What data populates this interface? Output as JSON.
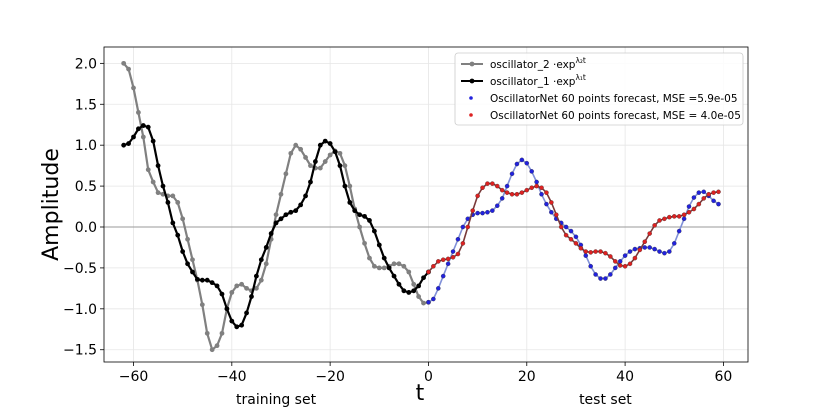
{
  "chart_data": {
    "type": "line",
    "title": "",
    "xlabel": "t",
    "ylabel": "Amplitude",
    "xlim": [
      -66,
      65
    ],
    "ylim": [
      -1.65,
      2.2
    ],
    "xticks": [
      -60,
      -40,
      -20,
      0,
      20,
      40,
      60
    ],
    "yticks": [
      -1.5,
      -1.0,
      -0.5,
      0.0,
      0.5,
      1.0,
      1.5,
      2.0
    ],
    "xtick_labels": [
      "−60",
      "−40",
      "−20",
      "0",
      "20",
      "40",
      "60"
    ],
    "ytick_labels": [
      "−1.5",
      "−1.0",
      "−0.5",
      "0.0",
      "0.5",
      "1.0",
      "1.5",
      "2.0"
    ],
    "grid": true,
    "legend_position": "top-right",
    "region_labels": {
      "left": "training set",
      "right": "test set"
    },
    "series": [
      {
        "name": "oscillator_2 ·exp",
        "name_sup": "λ₂t",
        "color": "#808080",
        "marker": "circle",
        "points": [
          [
            -62,
            2.0
          ],
          [
            -61,
            1.93
          ],
          [
            -60,
            1.7
          ],
          [
            -59,
            1.4
          ],
          [
            -58,
            1.1
          ],
          [
            -57,
            0.7
          ],
          [
            -56,
            0.55
          ],
          [
            -55,
            0.42
          ],
          [
            -54,
            0.4
          ],
          [
            -53,
            0.38
          ],
          [
            -52,
            0.38
          ],
          [
            -51,
            0.3
          ],
          [
            -50,
            0.1
          ],
          [
            -49,
            -0.15
          ],
          [
            -48,
            -0.4
          ],
          [
            -47,
            -0.65
          ],
          [
            -46,
            -0.95
          ],
          [
            -45,
            -1.3
          ],
          [
            -44,
            -1.5
          ],
          [
            -43,
            -1.45
          ],
          [
            -42,
            -1.3
          ],
          [
            -41,
            -1.0
          ],
          [
            -40,
            -0.8
          ],
          [
            -39,
            -0.72
          ],
          [
            -38,
            -0.7
          ],
          [
            -37,
            -0.75
          ],
          [
            -36,
            -0.78
          ],
          [
            -35,
            -0.75
          ],
          [
            -34,
            -0.65
          ],
          [
            -33,
            -0.45
          ],
          [
            -32,
            -0.15
          ],
          [
            -31,
            0.15
          ],
          [
            -30,
            0.4
          ],
          [
            -29,
            0.65
          ],
          [
            -28,
            0.9
          ],
          [
            -27,
            1.0
          ],
          [
            -26,
            0.95
          ],
          [
            -25,
            0.85
          ],
          [
            -24,
            0.75
          ],
          [
            -23,
            0.72
          ],
          [
            -22,
            0.72
          ],
          [
            -21,
            0.8
          ],
          [
            -20,
            0.88
          ],
          [
            -19,
            0.93
          ],
          [
            -18,
            0.9
          ],
          [
            -17,
            0.75
          ],
          [
            -16,
            0.5
          ],
          [
            -15,
            0.22
          ],
          [
            -14,
            0.0
          ],
          [
            -13,
            -0.2
          ],
          [
            -12,
            -0.38
          ],
          [
            -11,
            -0.48
          ],
          [
            -10,
            -0.5
          ],
          [
            -9,
            -0.5
          ],
          [
            -8,
            -0.48
          ],
          [
            -7,
            -0.45
          ],
          [
            -6,
            -0.45
          ],
          [
            -5,
            -0.48
          ],
          [
            -4,
            -0.55
          ],
          [
            -3,
            -0.7
          ],
          [
            -2,
            -0.85
          ],
          [
            -1,
            -0.93
          ],
          [
            0,
            -0.92
          ]
        ]
      },
      {
        "name": "oscillator_1 ·exp",
        "name_sup": "λ₁t",
        "color": "#000000",
        "marker": "circle",
        "points": [
          [
            -62,
            1.0
          ],
          [
            -61,
            1.02
          ],
          [
            -60,
            1.1
          ],
          [
            -59,
            1.2
          ],
          [
            -58,
            1.24
          ],
          [
            -57,
            1.22
          ],
          [
            -56,
            1.05
          ],
          [
            -55,
            0.75
          ],
          [
            -54,
            0.5
          ],
          [
            -53,
            0.3
          ],
          [
            -52,
            0.05
          ],
          [
            -51,
            -0.1
          ],
          [
            -50,
            -0.3
          ],
          [
            -49,
            -0.45
          ],
          [
            -48,
            -0.55
          ],
          [
            -47,
            -0.64
          ],
          [
            -46,
            -0.65
          ],
          [
            -45,
            -0.65
          ],
          [
            -44,
            -0.68
          ],
          [
            -43,
            -0.72
          ],
          [
            -42,
            -0.82
          ],
          [
            -41,
            -1.0
          ],
          [
            -40,
            -1.15
          ],
          [
            -39,
            -1.22
          ],
          [
            -38,
            -1.2
          ],
          [
            -37,
            -1.05
          ],
          [
            -36,
            -0.85
          ],
          [
            -35,
            -0.6
          ],
          [
            -34,
            -0.4
          ],
          [
            -33,
            -0.25
          ],
          [
            -32,
            -0.08
          ],
          [
            -31,
            0.05
          ],
          [
            -30,
            0.1
          ],
          [
            -29,
            0.15
          ],
          [
            -28,
            0.18
          ],
          [
            -27,
            0.2
          ],
          [
            -26,
            0.27
          ],
          [
            -25,
            0.38
          ],
          [
            -24,
            0.55
          ],
          [
            -23,
            0.8
          ],
          [
            -22,
            1.0
          ],
          [
            -21,
            1.05
          ],
          [
            -20,
            1.02
          ],
          [
            -19,
            0.92
          ],
          [
            -18,
            0.75
          ],
          [
            -17,
            0.5
          ],
          [
            -16,
            0.3
          ],
          [
            -15,
            0.2
          ],
          [
            -14,
            0.15
          ],
          [
            -13,
            0.13
          ],
          [
            -12,
            0.08
          ],
          [
            -11,
            -0.05
          ],
          [
            -10,
            -0.22
          ],
          [
            -9,
            -0.38
          ],
          [
            -8,
            -0.5
          ],
          [
            -7,
            -0.6
          ],
          [
            -6,
            -0.7
          ],
          [
            -5,
            -0.78
          ],
          [
            -4,
            -0.8
          ],
          [
            -3,
            -0.78
          ],
          [
            -2,
            -0.72
          ],
          [
            -1,
            -0.62
          ],
          [
            0,
            -0.55
          ]
        ]
      },
      {
        "name": "OscillatorNet 60 points forecast, MSE =5.9e-05",
        "color": "#2222dd",
        "line_color": "#8090d8",
        "marker": "dot",
        "points": [
          [
            0,
            -0.92
          ],
          [
            1,
            -0.88
          ],
          [
            2,
            -0.75
          ],
          [
            3,
            -0.6
          ],
          [
            4,
            -0.45
          ],
          [
            5,
            -0.3
          ],
          [
            6,
            -0.15
          ],
          [
            7,
            0.0
          ],
          [
            8,
            0.1
          ],
          [
            9,
            0.15
          ],
          [
            10,
            0.17
          ],
          [
            11,
            0.17
          ],
          [
            12,
            0.18
          ],
          [
            13,
            0.2
          ],
          [
            14,
            0.26
          ],
          [
            15,
            0.35
          ],
          [
            16,
            0.5
          ],
          [
            17,
            0.65
          ],
          [
            18,
            0.77
          ],
          [
            19,
            0.82
          ],
          [
            20,
            0.78
          ],
          [
            21,
            0.68
          ],
          [
            22,
            0.55
          ],
          [
            23,
            0.4
          ],
          [
            24,
            0.28
          ],
          [
            25,
            0.18
          ],
          [
            26,
            0.1
          ],
          [
            27,
            0.05
          ],
          [
            28,
            0.0
          ],
          [
            29,
            -0.05
          ],
          [
            30,
            -0.12
          ],
          [
            31,
            -0.22
          ],
          [
            32,
            -0.35
          ],
          [
            33,
            -0.48
          ],
          [
            34,
            -0.58
          ],
          [
            35,
            -0.63
          ],
          [
            36,
            -0.63
          ],
          [
            37,
            -0.58
          ],
          [
            38,
            -0.5
          ],
          [
            39,
            -0.42
          ],
          [
            40,
            -0.35
          ],
          [
            41,
            -0.3
          ],
          [
            42,
            -0.27
          ],
          [
            43,
            -0.26
          ],
          [
            44,
            -0.25
          ],
          [
            45,
            -0.25
          ],
          [
            46,
            -0.27
          ],
          [
            47,
            -0.3
          ],
          [
            48,
            -0.32
          ],
          [
            49,
            -0.3
          ],
          [
            50,
            -0.2
          ],
          [
            51,
            -0.05
          ],
          [
            52,
            0.1
          ],
          [
            53,
            0.25
          ],
          [
            54,
            0.36
          ],
          [
            55,
            0.42
          ],
          [
            56,
            0.43
          ],
          [
            57,
            0.38
          ],
          [
            58,
            0.32
          ],
          [
            59,
            0.28
          ]
        ]
      },
      {
        "name": "OscillatorNet 60 points forecast, MSE = 4.0e-05",
        "color": "#dd2222",
        "line_color": "#7a3a3a",
        "marker": "dot",
        "points": [
          [
            0,
            -0.55
          ],
          [
            1,
            -0.48
          ],
          [
            2,
            -0.42
          ],
          [
            3,
            -0.4
          ],
          [
            4,
            -0.39
          ],
          [
            5,
            -0.37
          ],
          [
            6,
            -0.33
          ],
          [
            7,
            -0.2
          ],
          [
            8,
            0.0
          ],
          [
            9,
            0.2
          ],
          [
            10,
            0.38
          ],
          [
            11,
            0.48
          ],
          [
            12,
            0.53
          ],
          [
            13,
            0.53
          ],
          [
            14,
            0.5
          ],
          [
            15,
            0.45
          ],
          [
            16,
            0.42
          ],
          [
            17,
            0.4
          ],
          [
            18,
            0.4
          ],
          [
            19,
            0.42
          ],
          [
            20,
            0.45
          ],
          [
            21,
            0.48
          ],
          [
            22,
            0.5
          ],
          [
            23,
            0.48
          ],
          [
            24,
            0.42
          ],
          [
            25,
            0.3
          ],
          [
            26,
            0.15
          ],
          [
            27,
            0.0
          ],
          [
            28,
            -0.1
          ],
          [
            29,
            -0.15
          ],
          [
            30,
            -0.2
          ],
          [
            31,
            -0.26
          ],
          [
            32,
            -0.3
          ],
          [
            33,
            -0.31
          ],
          [
            34,
            -0.3
          ],
          [
            35,
            -0.3
          ],
          [
            36,
            -0.32
          ],
          [
            37,
            -0.36
          ],
          [
            38,
            -0.42
          ],
          [
            39,
            -0.47
          ],
          [
            40,
            -0.48
          ],
          [
            41,
            -0.45
          ],
          [
            42,
            -0.38
          ],
          [
            43,
            -0.28
          ],
          [
            44,
            -0.18
          ],
          [
            45,
            -0.08
          ],
          [
            46,
            0.02
          ],
          [
            47,
            0.08
          ],
          [
            48,
            0.1
          ],
          [
            49,
            0.12
          ],
          [
            50,
            0.13
          ],
          [
            51,
            0.13
          ],
          [
            52,
            0.15
          ],
          [
            53,
            0.18
          ],
          [
            54,
            0.22
          ],
          [
            55,
            0.28
          ],
          [
            56,
            0.35
          ],
          [
            57,
            0.4
          ],
          [
            58,
            0.42
          ],
          [
            59,
            0.43
          ]
        ]
      }
    ]
  }
}
